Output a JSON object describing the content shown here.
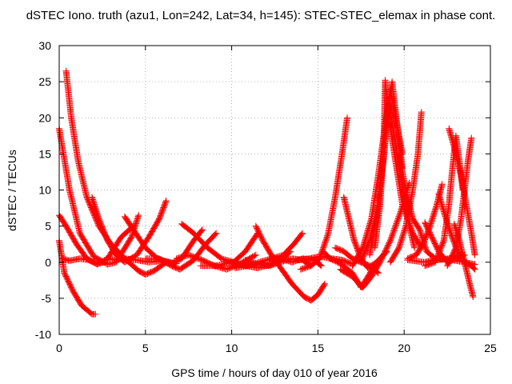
{
  "chart_data": {
    "type": "scatter",
    "title": "dSTEC Iono. truth (azu1, Lon=242, Lat=34, h=145): STEC-STEC_elemax in phase cont.",
    "xlabel": "GPS time / hours of day 010 of year 2016",
    "ylabel": "dSTEC  / TECUs",
    "xlim": [
      0,
      25
    ],
    "ylim": [
      -10,
      30
    ],
    "xticks": [
      0,
      5,
      10,
      15,
      20,
      25
    ],
    "yticks": [
      -10,
      -5,
      0,
      5,
      10,
      15,
      20,
      25,
      30
    ],
    "grid": true,
    "marker": "plus",
    "marker_color": "#ff0000",
    "series": [
      {
        "values": [
          [
            0.0,
            18.5
          ],
          [
            0.6,
            10
          ],
          [
            1.2,
            4
          ],
          [
            2.0,
            0.8
          ],
          [
            2.8,
            -0.3
          ],
          [
            3.3,
            0
          ],
          [
            4.2,
            3.5
          ],
          [
            4.6,
            6.5
          ]
        ]
      },
      {
        "values": [
          [
            0.0,
            3.0
          ],
          [
            0.3,
            -1.5
          ],
          [
            0.8,
            -4
          ],
          [
            1.3,
            -6
          ],
          [
            1.9,
            -7.2
          ],
          [
            2.1,
            -7.2
          ]
        ]
      },
      {
        "values": [
          [
            0.0,
            6.5
          ],
          [
            0.4,
            5
          ],
          [
            1.0,
            2.5
          ],
          [
            1.6,
            0.5
          ],
          [
            2.2,
            -0.3
          ],
          [
            2.8,
            0.5
          ],
          [
            3.6,
            3.5
          ],
          [
            4.3,
            5
          ]
        ]
      },
      {
        "values": [
          [
            0.2,
            0.5
          ],
          [
            0.6,
            0.2
          ],
          [
            1.2,
            0.5
          ],
          [
            1.7,
            0.3
          ],
          [
            2.2,
            -0.2
          ],
          [
            2.6,
            0
          ]
        ]
      },
      {
        "values": [
          [
            0.4,
            26.5
          ],
          [
            0.7,
            20
          ],
          [
            1.1,
            14
          ],
          [
            1.6,
            9
          ],
          [
            2.3,
            5
          ],
          [
            3.0,
            2.5
          ],
          [
            3.8,
            0.5
          ],
          [
            4.6,
            -1.2
          ],
          [
            5.0,
            -1.7
          ],
          [
            5.5,
            -1.2
          ],
          [
            6.2,
            0
          ]
        ]
      },
      {
        "values": [
          [
            1.9,
            9.0
          ],
          [
            2.3,
            6
          ],
          [
            2.8,
            3
          ],
          [
            3.3,
            1
          ],
          [
            3.8,
            0
          ],
          [
            4.5,
            1
          ],
          [
            5.2,
            3.5
          ],
          [
            5.8,
            6
          ],
          [
            6.2,
            8.5
          ]
        ]
      },
      {
        "values": [
          [
            2.8,
            0.5
          ],
          [
            3.3,
            0.3
          ],
          [
            3.8,
            0.5
          ],
          [
            4.5,
            0.3
          ],
          [
            5.2,
            0
          ],
          [
            6.0,
            0.2
          ],
          [
            6.8,
            -0.2
          ]
        ]
      },
      {
        "values": [
          [
            3.8,
            6.3
          ],
          [
            4.3,
            4.5
          ],
          [
            5.0,
            2
          ],
          [
            5.7,
            0.5
          ],
          [
            6.5,
            -0.2
          ],
          [
            7.1,
            0.5
          ],
          [
            7.8,
            3
          ],
          [
            8.3,
            4.5
          ]
        ]
      },
      {
        "values": [
          [
            5.0,
            0.5
          ],
          [
            5.8,
            0.5
          ],
          [
            6.5,
            -0.5
          ],
          [
            7.0,
            -1
          ],
          [
            7.8,
            0.3
          ],
          [
            8.5,
            2.5
          ],
          [
            9.1,
            4
          ]
        ]
      },
      {
        "values": [
          [
            6.8,
            0.5
          ],
          [
            7.5,
            1
          ],
          [
            8.3,
            0.3
          ],
          [
            9.0,
            -0.5
          ],
          [
            9.7,
            -1
          ],
          [
            10.5,
            -0.2
          ],
          [
            11.4,
            1
          ]
        ]
      },
      {
        "values": [
          [
            7.1,
            5.3
          ],
          [
            7.8,
            4
          ],
          [
            8.6,
            2
          ],
          [
            9.4,
            0.5
          ],
          [
            10.1,
            0
          ],
          [
            10.8,
            1.5
          ],
          [
            11.5,
            4
          ]
        ]
      },
      {
        "values": [
          [
            8.2,
            -0.5
          ],
          [
            9.1,
            -0.5
          ],
          [
            10.0,
            0
          ],
          [
            10.8,
            -0.5
          ],
          [
            11.5,
            -0.8
          ],
          [
            12.3,
            -0.3
          ],
          [
            13.0,
            0.5
          ],
          [
            13.4,
            1.5
          ]
        ]
      },
      {
        "values": [
          [
            10.2,
            -0.8
          ],
          [
            10.9,
            -0.5
          ],
          [
            11.6,
            0
          ],
          [
            12.3,
            0.5
          ],
          [
            13.0,
            1
          ],
          [
            13.6,
            2.5
          ],
          [
            14.1,
            4
          ]
        ]
      },
      {
        "values": [
          [
            11.4,
            5.0
          ],
          [
            11.8,
            3
          ],
          [
            12.3,
            1
          ],
          [
            12.9,
            -1
          ],
          [
            13.5,
            -3
          ],
          [
            14.2,
            -4.8
          ],
          [
            14.6,
            -5.3
          ],
          [
            15.0,
            -4.5
          ],
          [
            15.4,
            -3
          ]
        ]
      },
      {
        "values": [
          [
            10.8,
            0.3
          ],
          [
            11.5,
            -0.3
          ],
          [
            12.2,
            -0.5
          ],
          [
            12.8,
            0
          ],
          [
            13.5,
            0.5
          ],
          [
            14.1,
            0.3
          ],
          [
            14.6,
            -0.5
          ]
        ]
      },
      {
        "values": [
          [
            12.2,
            0.5
          ],
          [
            12.9,
            0.5
          ],
          [
            13.5,
            0
          ],
          [
            14.1,
            0.5
          ],
          [
            14.8,
            0.3
          ],
          [
            15.2,
            -0.5
          ]
        ]
      },
      {
        "values": [
          [
            14.0,
            -1.0
          ],
          [
            14.6,
            -0.5
          ],
          [
            15.1,
            0.5
          ],
          [
            15.6,
            4
          ],
          [
            16.0,
            9
          ],
          [
            16.4,
            15
          ],
          [
            16.7,
            20
          ]
        ]
      },
      {
        "values": [
          [
            13.8,
            0.3
          ],
          [
            14.5,
            0.5
          ],
          [
            15.1,
            0.8
          ],
          [
            15.8,
            0.5
          ],
          [
            16.4,
            0.3
          ],
          [
            16.9,
            -0.2
          ]
        ]
      },
      {
        "values": [
          [
            15.3,
            1.5
          ],
          [
            15.7,
            0.5
          ],
          [
            16.3,
            -0.2
          ],
          [
            17.0,
            -1.5
          ],
          [
            17.5,
            -3.5
          ],
          [
            17.9,
            -2
          ],
          [
            18.4,
            0
          ],
          [
            19.0,
            1.5
          ]
        ]
      },
      {
        "values": [
          [
            16.5,
            9.0
          ],
          [
            16.8,
            6
          ],
          [
            17.1,
            3
          ],
          [
            17.5,
            0.5
          ],
          [
            17.9,
            -0.8
          ],
          [
            18.4,
            0
          ],
          [
            18.8,
            1
          ]
        ]
      },
      {
        "values": [
          [
            16.0,
            2.0
          ],
          [
            16.5,
            1.5
          ],
          [
            17.0,
            0.5
          ],
          [
            17.5,
            0
          ],
          [
            18.0,
            -0.5
          ],
          [
            18.5,
            -1.5
          ]
        ]
      },
      {
        "values": [
          [
            16.3,
            -1.0
          ],
          [
            17.0,
            -2
          ],
          [
            17.6,
            -3.5
          ],
          [
            18.1,
            -2
          ],
          [
            18.6,
            0
          ],
          [
            19.2,
            3
          ],
          [
            19.8,
            7
          ],
          [
            20.3,
            11
          ]
        ]
      },
      {
        "values": [
          [
            17.0,
            -0.5
          ],
          [
            17.6,
            2
          ],
          [
            18.1,
            6
          ],
          [
            18.5,
            12
          ],
          [
            18.9,
            19
          ],
          [
            19.2,
            24
          ],
          [
            19.5,
            20
          ],
          [
            19.9,
            15
          ]
        ]
      },
      {
        "values": [
          [
            17.5,
            0.0
          ],
          [
            18.0,
            3
          ],
          [
            18.4,
            7
          ],
          [
            18.8,
            14
          ],
          [
            19.0,
            19
          ],
          [
            19.3,
            25
          ],
          [
            19.6,
            19
          ],
          [
            19.9,
            13
          ]
        ]
      },
      {
        "values": [
          [
            18.0,
            1.0
          ],
          [
            18.4,
            6
          ],
          [
            18.7,
            12
          ],
          [
            18.9,
            18
          ],
          [
            19.1,
            22
          ],
          [
            19.4,
            18
          ],
          [
            19.8,
            12
          ],
          [
            20.3,
            5
          ],
          [
            20.6,
            2
          ]
        ]
      },
      {
        "values": [
          [
            18.3,
            2.0
          ],
          [
            18.6,
            8
          ],
          [
            18.8,
            15
          ],
          [
            18.9,
            25.2
          ],
          [
            19.1,
            20
          ],
          [
            19.5,
            14
          ],
          [
            19.9,
            8
          ],
          [
            20.5,
            4
          ],
          [
            21.0,
            2
          ]
        ]
      },
      {
        "values": [
          [
            19.7,
            15.0
          ],
          [
            20.1,
            10
          ],
          [
            20.5,
            6
          ],
          [
            20.9,
            4.5
          ],
          [
            21.3,
            1.5
          ],
          [
            21.9,
            0.3
          ],
          [
            22.6,
            0.5
          ],
          [
            23.2,
            1
          ]
        ]
      },
      {
        "values": [
          [
            19.2,
            0.0
          ],
          [
            19.7,
            2
          ],
          [
            20.1,
            5
          ],
          [
            20.5,
            10
          ],
          [
            20.8,
            15
          ],
          [
            21.0,
            20.8
          ]
        ]
      },
      {
        "values": [
          [
            20.2,
            0.5
          ],
          [
            20.7,
            1
          ],
          [
            21.1,
            2.5
          ],
          [
            21.5,
            5
          ],
          [
            21.9,
            8
          ],
          [
            22.2,
            10.8
          ]
        ]
      },
      {
        "values": [
          [
            21.2,
            5.5
          ],
          [
            21.6,
            3.5
          ],
          [
            22.0,
            1.5
          ],
          [
            22.5,
            0
          ],
          [
            23.0,
            0.5
          ],
          [
            23.5,
            1
          ]
        ]
      },
      {
        "values": [
          [
            22.0,
            9.5
          ],
          [
            22.3,
            7
          ],
          [
            22.7,
            4
          ],
          [
            23.1,
            1.5
          ],
          [
            23.5,
            0
          ],
          [
            23.9,
            -0.5
          ],
          [
            24.1,
            -1
          ]
        ]
      },
      {
        "values": [
          [
            21.2,
            -0.5
          ],
          [
            21.8,
            0
          ],
          [
            22.3,
            3
          ],
          [
            22.6,
            8
          ],
          [
            22.8,
            13
          ],
          [
            23.0,
            17.5
          ],
          [
            23.2,
            14
          ],
          [
            23.4,
            10
          ]
        ]
      },
      {
        "values": [
          [
            22.6,
            18.5
          ],
          [
            22.9,
            16
          ],
          [
            23.3,
            12
          ],
          [
            23.6,
            8
          ],
          [
            23.9,
            4
          ],
          [
            24.1,
            1
          ]
        ]
      },
      {
        "values": [
          [
            22.5,
            -0.5
          ],
          [
            23.0,
            2
          ],
          [
            23.3,
            6
          ],
          [
            23.5,
            10
          ],
          [
            23.7,
            14
          ],
          [
            23.9,
            17.2
          ]
        ]
      },
      {
        "values": [
          [
            22.9,
            5.3
          ],
          [
            23.2,
            3
          ],
          [
            23.5,
            0
          ],
          [
            23.8,
            -3
          ],
          [
            24.0,
            -4.8
          ]
        ]
      },
      {
        "values": [
          [
            20.2,
            0.3
          ],
          [
            21.2,
            0
          ],
          [
            22.0,
            0.5
          ],
          [
            22.8,
            0.3
          ],
          [
            23.5,
            0
          ],
          [
            24.1,
            -0.3
          ]
        ]
      }
    ]
  }
}
